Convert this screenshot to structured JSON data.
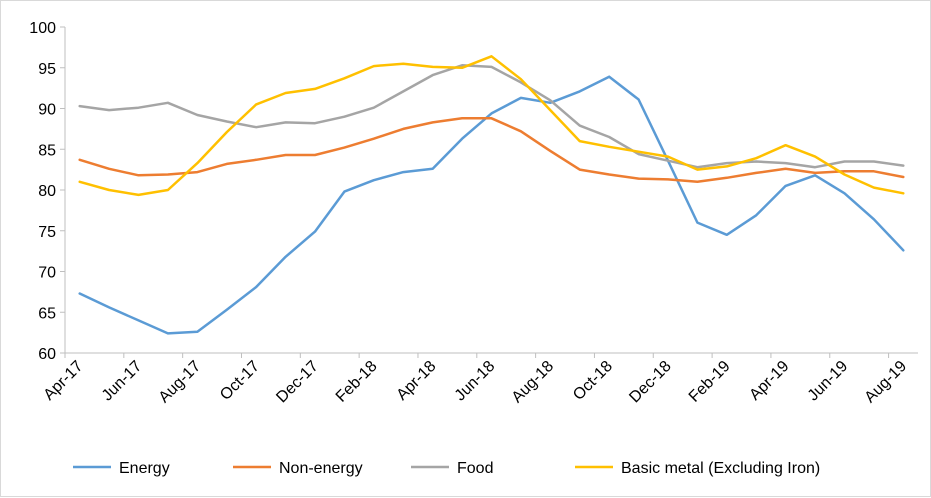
{
  "chart_data": {
    "type": "line",
    "title": "",
    "xlabel": "",
    "ylabel": "",
    "ylim": [
      60,
      100
    ],
    "y_ticks": [
      60,
      65,
      70,
      75,
      80,
      85,
      90,
      95,
      100
    ],
    "x": [
      "Apr-17",
      "May-17",
      "Jun-17",
      "Jul-17",
      "Aug-17",
      "Sep-17",
      "Oct-17",
      "Nov-17",
      "Dec-17",
      "Jan-18",
      "Feb-18",
      "Mar-18",
      "Apr-18",
      "May-18",
      "Jun-18",
      "Jul-18",
      "Aug-18",
      "Sep-18",
      "Oct-18",
      "Nov-18",
      "Dec-18",
      "Jan-19",
      "Feb-19",
      "Mar-19",
      "Apr-19",
      "May-19",
      "Jun-19",
      "Jul-19",
      "Aug-19"
    ],
    "x_tick_labels": [
      "Apr-17",
      "Jun-17",
      "Aug-17",
      "Oct-17",
      "Dec-17",
      "Feb-18",
      "Apr-18",
      "Jun-18",
      "Aug-18",
      "Oct-18",
      "Dec-18",
      "Feb-19",
      "Apr-19",
      "Jun-19",
      "Aug-19"
    ],
    "grid": false,
    "legend_position": "bottom",
    "series": [
      {
        "name": "Energy",
        "color": "#5b9bd5",
        "values": [
          67.3,
          65.6,
          64.0,
          62.4,
          62.6,
          65.3,
          68.1,
          71.8,
          74.9,
          79.8,
          81.2,
          82.2,
          82.6,
          86.3,
          89.4,
          91.3,
          90.7,
          92.1,
          93.9,
          91.1,
          83.6,
          76.0,
          74.5,
          76.9,
          80.5,
          81.8,
          79.6,
          76.4,
          72.6
        ]
      },
      {
        "name": "Non-energy",
        "color": "#ed7d31",
        "values": [
          83.7,
          82.6,
          81.8,
          81.9,
          82.2,
          83.2,
          83.7,
          84.3,
          84.3,
          85.2,
          86.3,
          87.5,
          88.3,
          88.8,
          88.8,
          87.2,
          84.8,
          82.5,
          81.9,
          81.4,
          81.3,
          81.0,
          81.5,
          82.1,
          82.6,
          82.1,
          82.3,
          82.3,
          81.6
        ]
      },
      {
        "name": "Food",
        "color": "#a5a5a5",
        "values": [
          90.3,
          89.8,
          90.1,
          90.7,
          89.2,
          88.4,
          87.7,
          88.3,
          88.2,
          89.0,
          90.1,
          92.1,
          94.1,
          95.3,
          95.1,
          93.2,
          91.0,
          87.9,
          86.5,
          84.4,
          83.6,
          82.8,
          83.3,
          83.5,
          83.3,
          82.8,
          83.5,
          83.5,
          83.0
        ]
      },
      {
        "name": "Basic metal (Excluding Iron)",
        "color": "#ffc000",
        "values": [
          81.0,
          80.0,
          79.4,
          80.0,
          83.3,
          87.1,
          90.5,
          91.9,
          92.4,
          93.7,
          95.2,
          95.5,
          95.1,
          95.0,
          96.4,
          93.6,
          89.8,
          86.0,
          85.3,
          84.7,
          84.1,
          82.5,
          82.9,
          83.9,
          85.5,
          84.1,
          81.9,
          80.3,
          79.6
        ]
      }
    ]
  }
}
